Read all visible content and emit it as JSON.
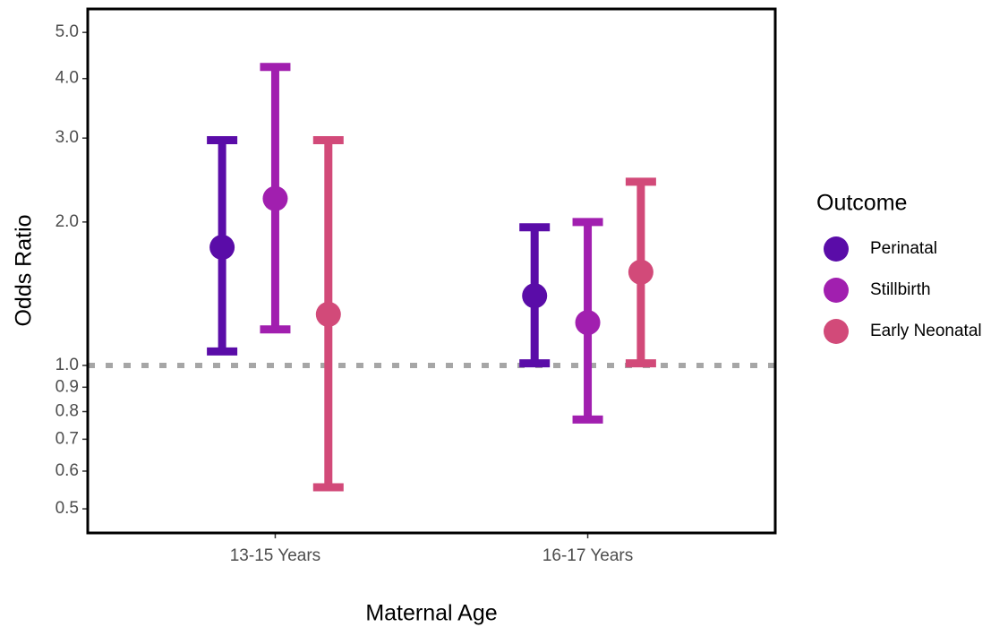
{
  "chart_data": {
    "type": "errorbar",
    "x_label": "Maternal Age",
    "y_label": "Odds Ratio",
    "categories": [
      "13-15 Years",
      "16-17 Years"
    ],
    "series": [
      {
        "name": "Perinatal",
        "color": "#5a0ca8",
        "values": [
          1.77,
          1.4
        ],
        "lower": [
          1.07,
          1.01
        ],
        "upper": [
          2.97,
          1.95
        ]
      },
      {
        "name": "Stillbirth",
        "color": "#a11faf",
        "values": [
          2.24,
          1.23
        ],
        "lower": [
          1.19,
          0.77
        ],
        "upper": [
          4.23,
          2.0
        ]
      },
      {
        "name": "Early Neonatal",
        "color": "#d24a79",
        "values": [
          1.28,
          1.57
        ],
        "lower": [
          0.555,
          1.01
        ],
        "upper": [
          2.97,
          2.43
        ]
      }
    ],
    "legend_title": "Outcome",
    "log_y": true,
    "ylim": [
      0.445,
      5.6
    ],
    "yticks": [
      {
        "value": 5.0,
        "label": "5.0"
      },
      {
        "value": 4.0,
        "label": "4.0"
      },
      {
        "value": 3.0,
        "label": "3.0"
      },
      {
        "value": 2.0,
        "label": "2.0"
      },
      {
        "value": 1.0,
        "label": "1.0"
      },
      0.9,
      0.8,
      0.7,
      0.6,
      0.5
    ],
    "reference_line": 1.0
  }
}
